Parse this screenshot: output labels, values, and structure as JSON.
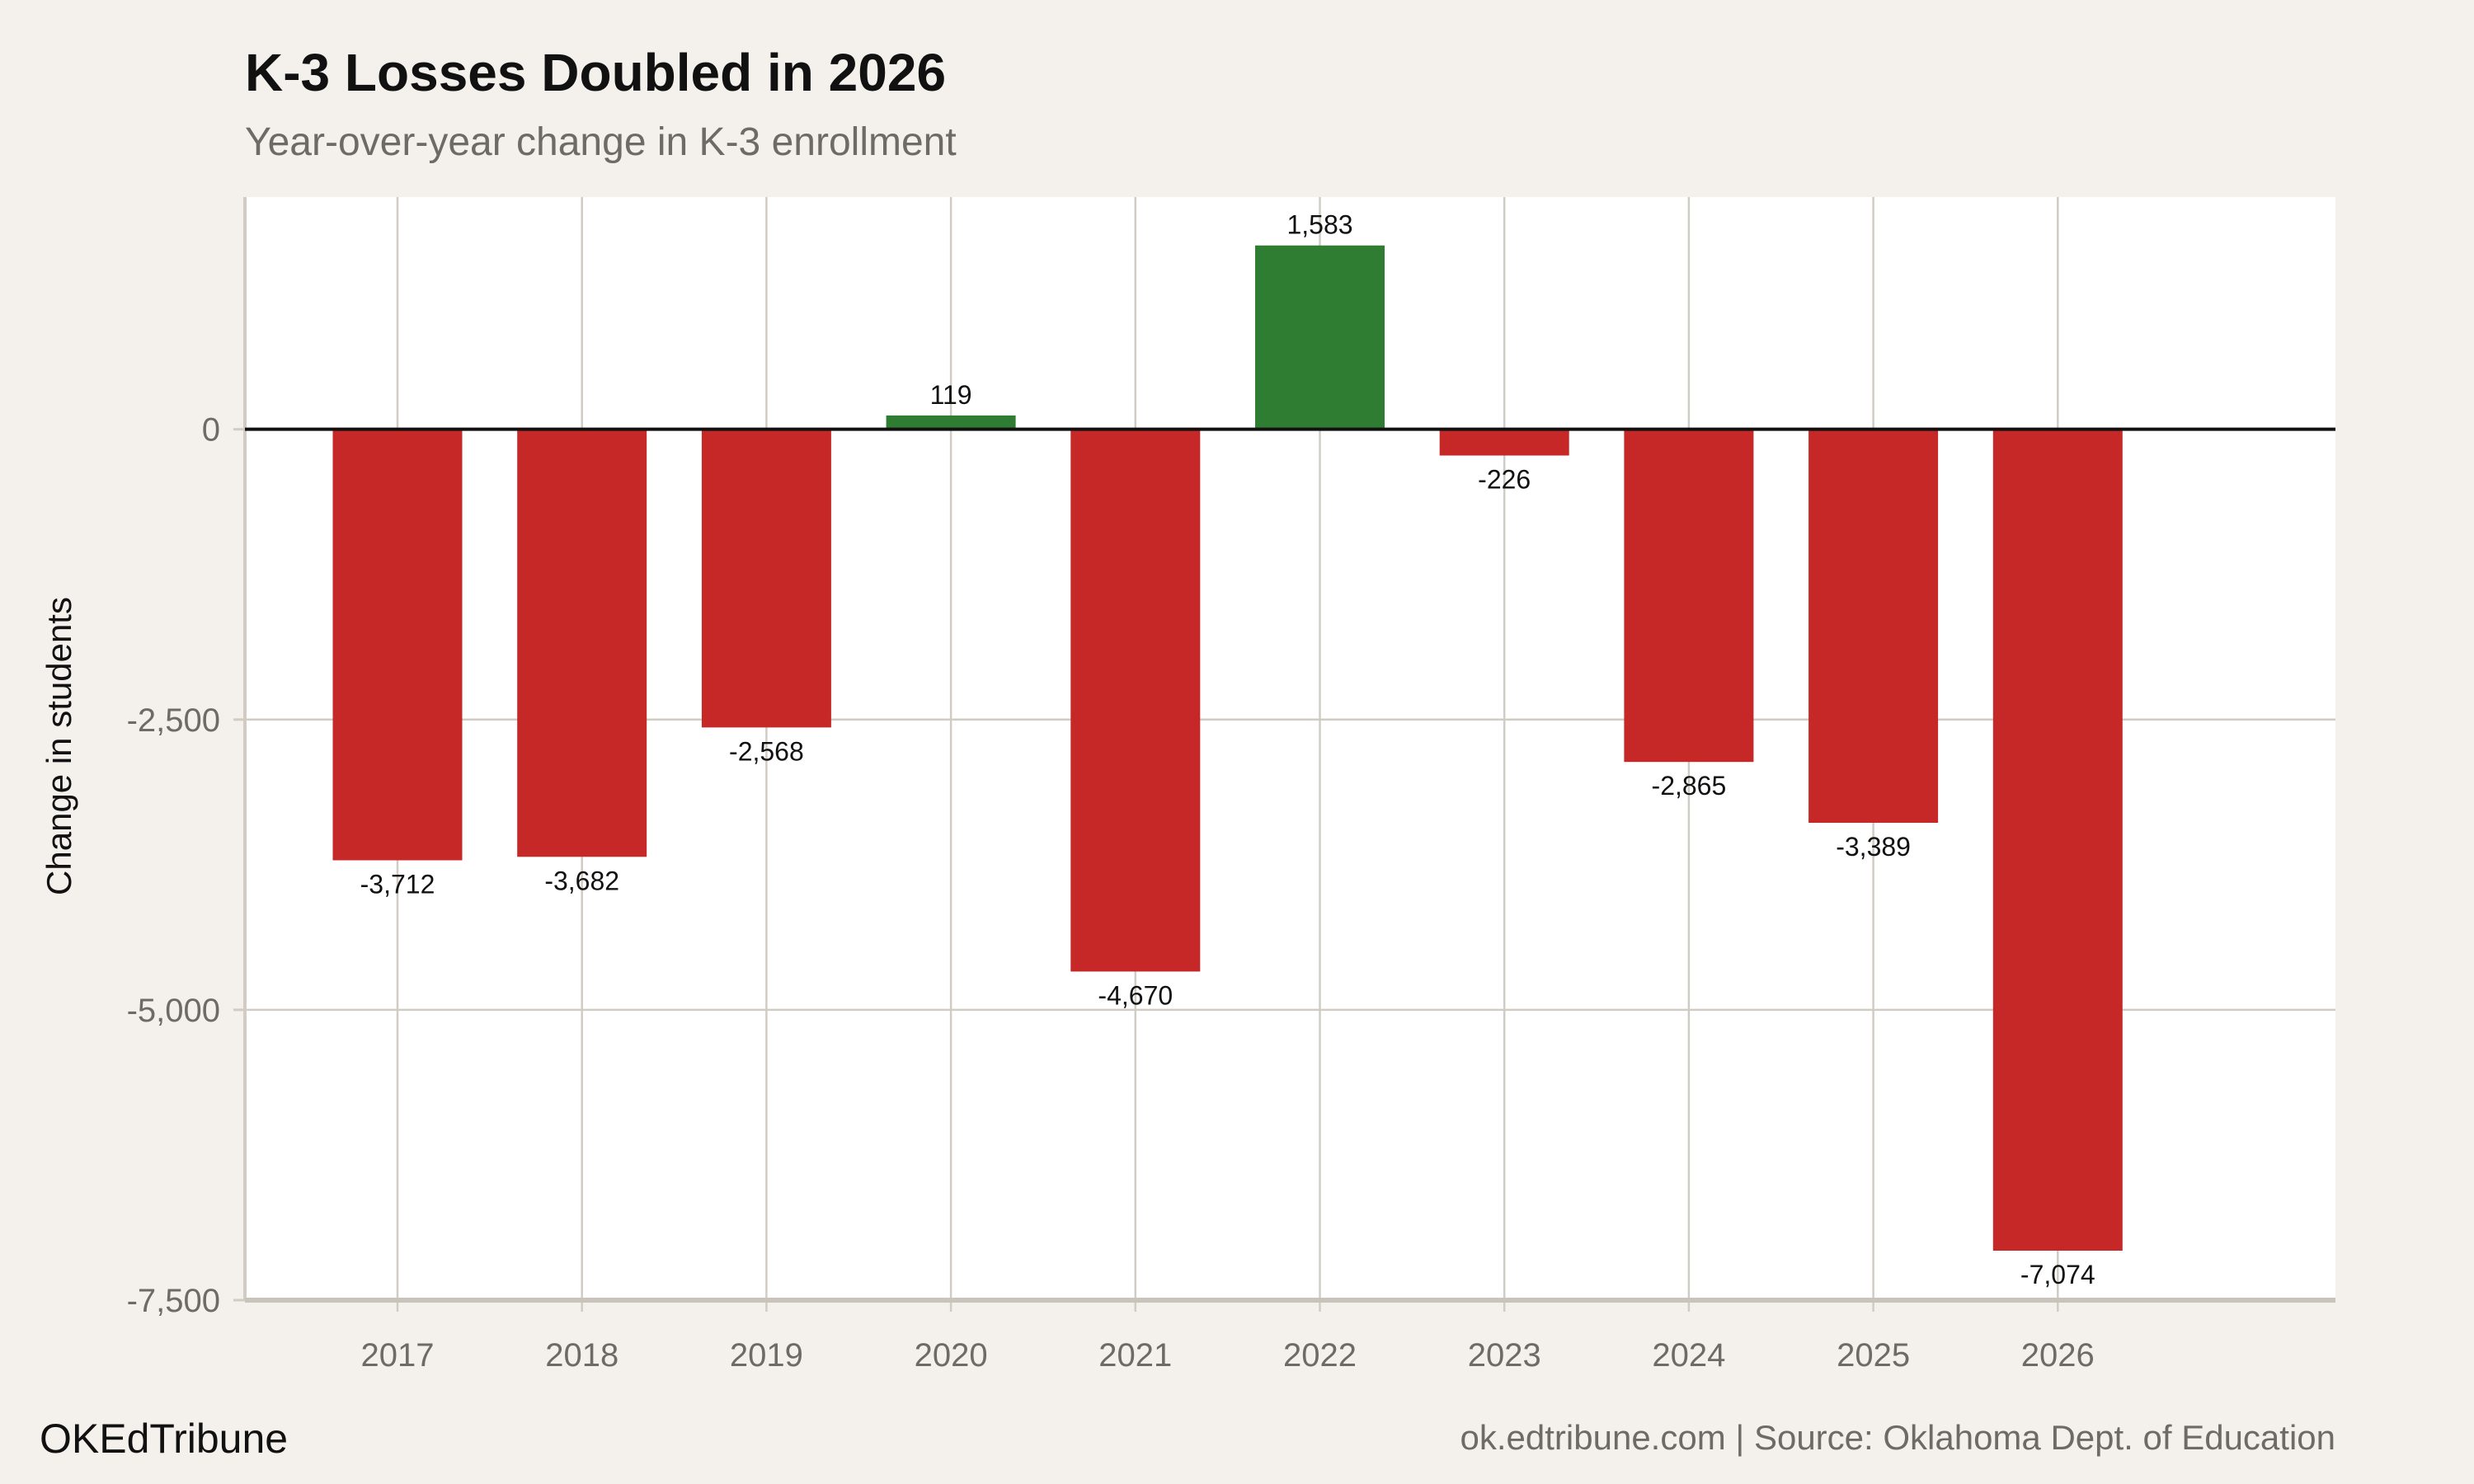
{
  "chart_data": {
    "type": "bar",
    "title": "K-3 Losses Doubled in 2026",
    "subtitle": "Year-over-year change in K-3 enrollment",
    "xlabel": "",
    "ylabel": "Change in students",
    "categories": [
      "2017",
      "2018",
      "2019",
      "2020",
      "2021",
      "2022",
      "2023",
      "2024",
      "2025",
      "2026"
    ],
    "values": [
      -3712,
      -3682,
      -2568,
      119,
      -4670,
      1583,
      -226,
      -2865,
      -3389,
      -7074
    ],
    "data_labels": [
      "-3,712",
      "-3,682",
      "-2,568",
      "119",
      "-4,670",
      "1,583",
      "-226",
      "-2,865",
      "-3,389",
      "-7,074"
    ],
    "ylim": [
      -7500,
      2000
    ],
    "yticks": [
      0,
      -2500,
      -5000,
      -7500
    ],
    "ytick_labels": [
      "0",
      "-2,500",
      "-5,000",
      "-7,500"
    ],
    "grid": true,
    "colors": {
      "positive": "#2e7d32",
      "negative": "#c62828",
      "background": "#f4f1ec",
      "panel": "#ffffff",
      "grid": "#d1ccc3"
    }
  },
  "footer": {
    "brand": "OKEdTribune",
    "source": "ok.edtribune.com | Source: Oklahoma Dept. of Education"
  }
}
